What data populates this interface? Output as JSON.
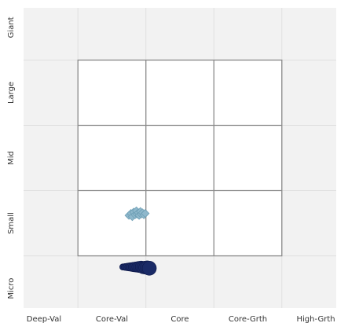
{
  "header_text": "",
  "chart_data": {
    "type": "scatter",
    "title": "",
    "xlabel": "",
    "ylabel": "",
    "x_ticks": [
      "Deep-Val",
      "Core-Val",
      "Core",
      "Core-Grth",
      "High-Grth"
    ],
    "y_ticks": [
      "Giant",
      "Large",
      "Mid",
      "Small",
      "Micro"
    ],
    "xlim": [
      -2.3,
      2.3
    ],
    "ylim": [
      -2.3,
      2.3
    ],
    "grid": true,
    "style_box": {
      "x_range": [
        -1.5,
        1.5
      ],
      "y_range": [
        -1.5,
        1.5
      ]
    },
    "series": [
      {
        "marker": "diamond",
        "color": "#8fb8cc",
        "edge_color": "#6e9fb5",
        "points": [
          {
            "x": -0.75,
            "y": -0.88
          },
          {
            "x": -0.72,
            "y": -0.85
          },
          {
            "x": -0.7,
            "y": -0.9
          },
          {
            "x": -0.68,
            "y": -0.83
          },
          {
            "x": -0.66,
            "y": -0.87
          },
          {
            "x": -0.64,
            "y": -0.81
          },
          {
            "x": -0.63,
            "y": -0.86
          },
          {
            "x": -0.61,
            "y": -0.84
          },
          {
            "x": -0.6,
            "y": -0.88
          },
          {
            "x": -0.58,
            "y": -0.82
          },
          {
            "x": -0.57,
            "y": -0.86
          },
          {
            "x": -0.55,
            "y": -0.84
          },
          {
            "x": -0.53,
            "y": -0.87
          },
          {
            "x": -0.51,
            "y": -0.85
          }
        ]
      },
      {
        "marker": "circle",
        "color": "#1a2a66",
        "edge_color": "#0f1a4a",
        "points": [
          {
            "x": -0.84,
            "y": -1.67
          },
          {
            "x": -0.81,
            "y": -1.67
          },
          {
            "x": -0.78,
            "y": -1.67
          },
          {
            "x": -0.75,
            "y": -1.67
          },
          {
            "x": -0.72,
            "y": -1.67
          },
          {
            "x": -0.69,
            "y": -1.67
          },
          {
            "x": -0.66,
            "y": -1.67
          },
          {
            "x": -0.63,
            "y": -1.67
          },
          {
            "x": -0.6,
            "y": -1.67
          },
          {
            "x": -0.57,
            "y": -1.67
          },
          {
            "x": -0.54,
            "y": -1.68
          },
          {
            "x": -0.51,
            "y": -1.68
          },
          {
            "x": -0.48,
            "y": -1.68
          },
          {
            "x": -0.45,
            "y": -1.69
          }
        ]
      }
    ]
  }
}
